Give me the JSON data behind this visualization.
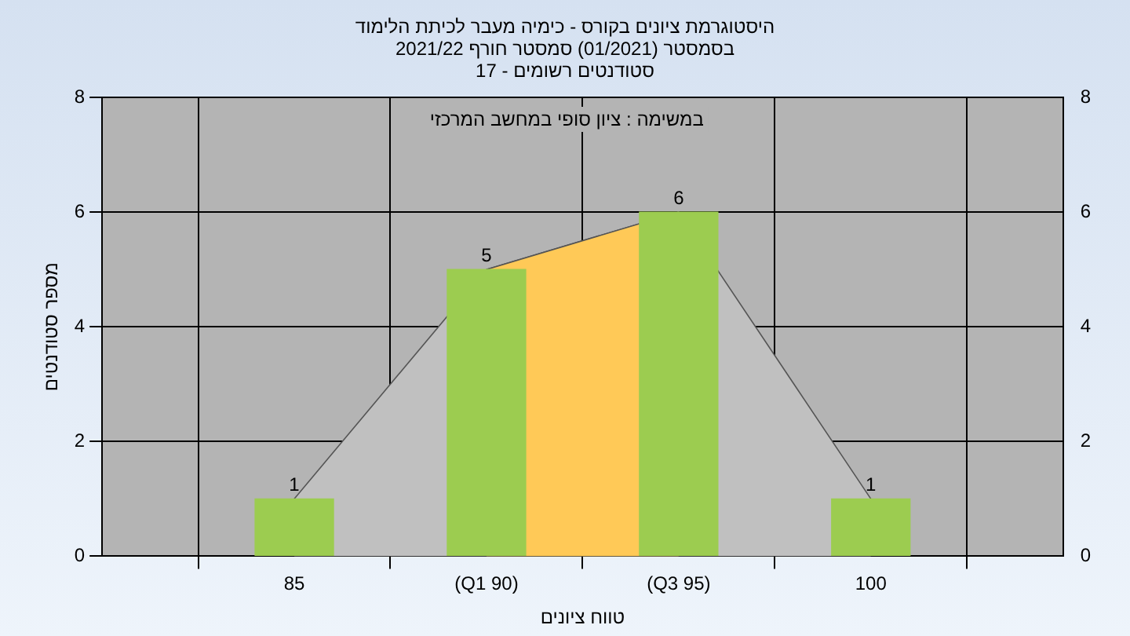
{
  "chart_data": {
    "type": "bar",
    "title": "היסטוגרמת ציונים בקורס - כימיה מעבר לכיתת הלימוד",
    "subtitle": "בסמסטר  (01/2021)  סמסטר חורף 2021/22\nסטודנטים רשומים - 17",
    "xlabel": "טווח ציונים",
    "ylabel": "מספר סטודנטים",
    "annotations": [
      "במשימה : ציון סופי במחשב המרכזי"
    ],
    "categories": [
      "85",
      "(Q1 90)",
      "(Q3 95)",
      "100"
    ],
    "series": [
      {
        "color": "#9ccc50",
        "values": [
          1,
          5,
          6,
          1
        ],
        "value_labels": [
          "1",
          "5",
          "6",
          "1"
        ]
      },
      {
        "type": "area",
        "color": "#c0c0c0",
        "values": [
          1,
          5,
          6,
          1
        ]
      },
      {
        "type": "area",
        "color": "#ffc957",
        "values": [
          null,
          5,
          6,
          null
        ]
      }
    ],
    "ylim": [
      0,
      8
    ],
    "yticks": [
      0,
      2,
      4,
      6,
      8
    ],
    "y2lim": [
      0,
      8
    ],
    "y2ticks": [
      0,
      2,
      4,
      6,
      8
    ],
    "grid": true
  }
}
